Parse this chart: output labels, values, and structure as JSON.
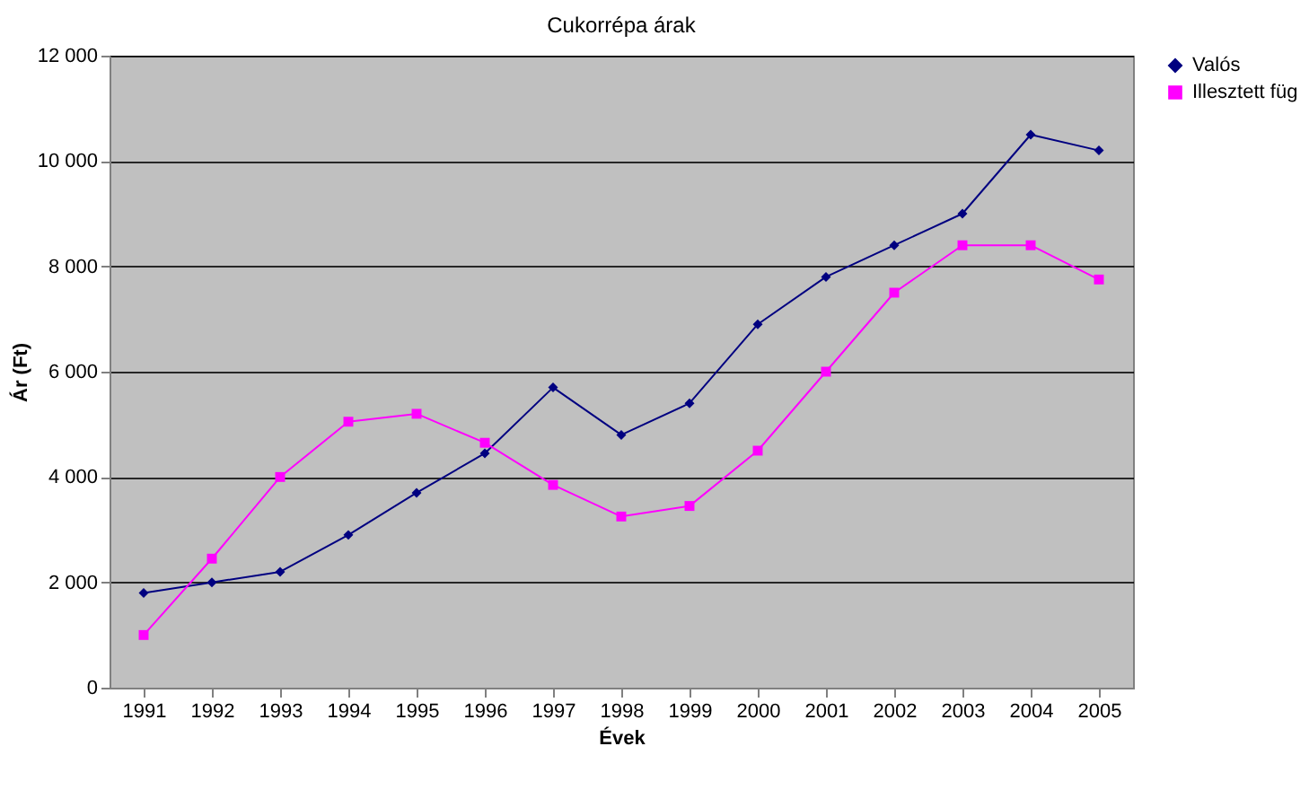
{
  "chart_data": {
    "type": "line",
    "title": "Cukorrépa árak",
    "xlabel": "Évek",
    "ylabel": "Ár (Ft)",
    "categories": [
      "1991",
      "1992",
      "1993",
      "1994",
      "1995",
      "1996",
      "1997",
      "1998",
      "1999",
      "2000",
      "2001",
      "2002",
      "2003",
      "2004",
      "2005"
    ],
    "series": [
      {
        "name": "Valós",
        "color": "#000080",
        "marker": "diamond",
        "values": [
          1800,
          2000,
          2200,
          2900,
          3700,
          4450,
          5700,
          4800,
          5400,
          6900,
          7800,
          8400,
          9000,
          10500,
          10200
        ]
      },
      {
        "name": "Illesztett füg",
        "color": "#ff00ff",
        "marker": "square",
        "values": [
          1000,
          2450,
          4000,
          5050,
          5200,
          4650,
          3850,
          3250,
          3450,
          4500,
          6000,
          7500,
          8400,
          8400,
          7750
        ]
      }
    ],
    "ylim": [
      0,
      12000
    ],
    "yticks": [
      0,
      {
        "value": 2000,
        "label": "2 000"
      },
      {
        "value": 4000,
        "label": "4 000"
      },
      {
        "value": 6000,
        "label": "6 000"
      },
      {
        "value": 8000,
        "label": "8 000"
      },
      {
        "value": 10000,
        "label": "10 000"
      },
      {
        "value": 12000,
        "label": "12 000"
      }
    ],
    "grid": "y",
    "legend": "right",
    "line_style": "solid"
  }
}
